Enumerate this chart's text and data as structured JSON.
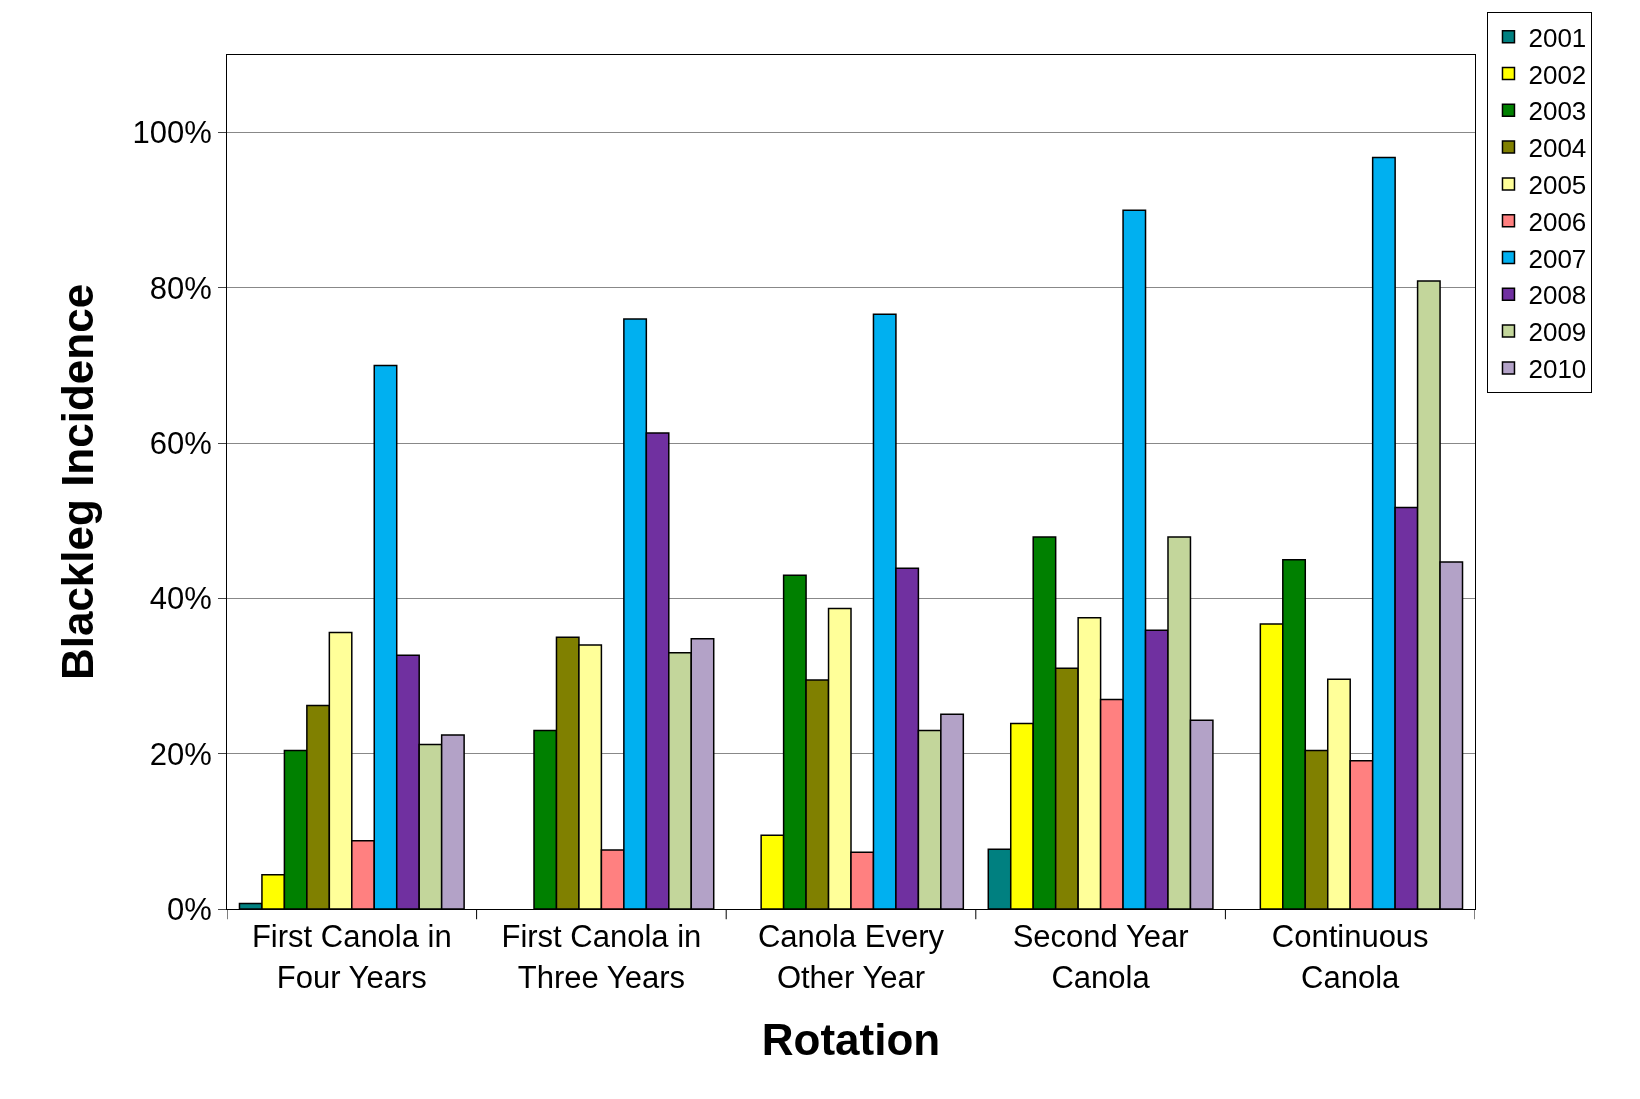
{
  "chart_data": {
    "type": "bar",
    "xlabel": "Rotation",
    "ylabel": "Blackleg Incidence",
    "categories": [
      "First Canola in\nFour Years",
      "First Canola in\nThree Years",
      "Canola Every\nOther Year",
      "Second Year\nCanola",
      "Continuous\nCanola"
    ],
    "series": [
      {
        "name": "2001",
        "color": "#008080",
        "values": [
          0.7,
          null,
          null,
          7.7,
          null
        ]
      },
      {
        "name": "2002",
        "color": "#ffff00",
        "values": [
          4.4,
          null,
          9.5,
          23.9,
          36.7
        ]
      },
      {
        "name": "2003",
        "color": "#008000",
        "values": [
          20.4,
          23,
          43,
          47.9,
          45
        ]
      },
      {
        "name": "2004",
        "color": "#808000",
        "values": [
          26.2,
          35,
          29.5,
          31,
          20.4
        ]
      },
      {
        "name": "2005",
        "color": "#ffff99",
        "values": [
          35.6,
          34,
          38.7,
          37.5,
          29.6
        ]
      },
      {
        "name": "2006",
        "color": "#ff8080",
        "values": [
          8.8,
          7.6,
          7.3,
          27,
          19.1
        ]
      },
      {
        "name": "2007",
        "color": "#00b0f0",
        "values": [
          70,
          76,
          76.6,
          90,
          96.8
        ]
      },
      {
        "name": "2008",
        "color": "#7030a0",
        "values": [
          32.7,
          61.3,
          43.9,
          35.9,
          51.7
        ]
      },
      {
        "name": "2009",
        "color": "#c3d69b",
        "values": [
          21.2,
          33,
          23,
          47.9,
          80.9
        ]
      },
      {
        "name": "2010",
        "color": "#b3a2c7",
        "values": [
          22.4,
          34.8,
          25.1,
          24.3,
          44.7
        ]
      }
    ],
    "ylim": [
      0,
      110
    ],
    "yticks": [
      {
        "value": 0,
        "label": "0%"
      },
      {
        "value": 20,
        "label": "20%"
      },
      {
        "value": 40,
        "label": "40%"
      },
      {
        "value": 60,
        "label": "60%"
      },
      {
        "value": 80,
        "label": "80%"
      },
      {
        "value": 100,
        "label": "100%"
      }
    ],
    "grid": "y",
    "legend": "top right"
  }
}
